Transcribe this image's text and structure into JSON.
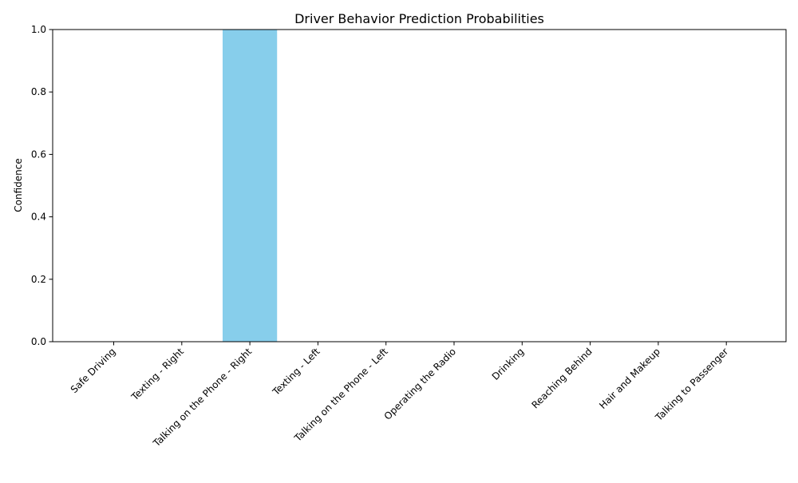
{
  "chart_data": {
    "type": "bar",
    "title": "Driver Behavior Prediction Probabilities",
    "xlabel": "",
    "ylabel": "Confidence",
    "ylim": [
      0,
      1
    ],
    "yticks": [
      "0.0",
      "0.2",
      "0.4",
      "0.6",
      "0.8",
      "1.0"
    ],
    "categories": [
      "Safe Driving",
      "Texting - Right",
      "Talking on the Phone - Right",
      "Texting - Left",
      "Talking on the Phone - Left",
      "Operating the Radio",
      "Drinking",
      "Reaching Behind",
      "Hair and Makeup",
      "Talking to Passenger"
    ],
    "values": [
      0,
      0,
      1.0,
      0,
      0,
      0,
      0,
      0,
      0,
      0
    ],
    "bar_color": "#87ceeb",
    "grid": false,
    "legend": "none"
  }
}
